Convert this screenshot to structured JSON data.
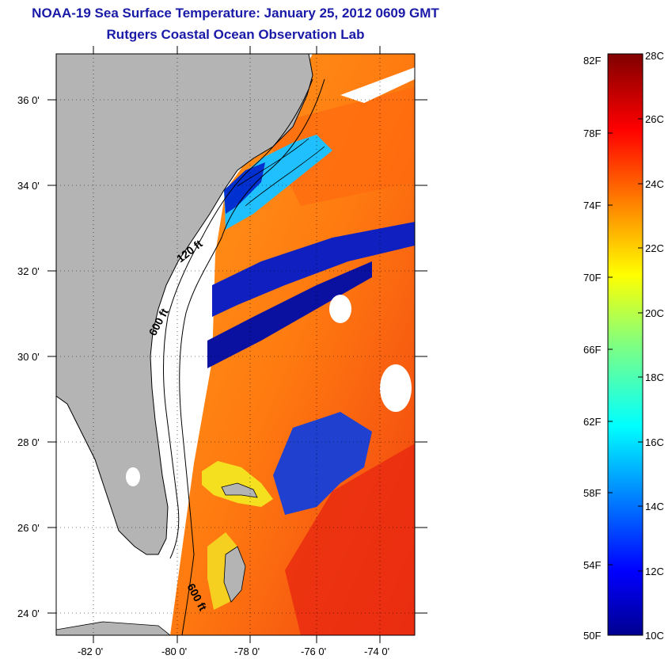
{
  "header": {
    "title": "NOAA-19 Sea Surface Temperature:  January 25, 2012 0609 GMT",
    "subtitle": "Rutgers Coastal Ocean Observation Lab"
  },
  "map": {
    "lat_ticks": [
      "36 0'",
      "34 0'",
      "32 0'",
      "30 0'",
      "28 0'",
      "26 0'",
      "24 0'"
    ],
    "lon_ticks": [
      "-82 0'",
      "-80 0'",
      "-78 0'",
      "-76 0'",
      "-74 0'"
    ],
    "contour_labels": [
      "120 ft",
      "600 ft",
      "600 ft"
    ],
    "land_color": "#b4b4b4",
    "cloud_color": "#ffffff"
  },
  "colorbar": {
    "f_labels": [
      "82F",
      "78F",
      "74F",
      "70F",
      "66F",
      "62F",
      "58F",
      "54F",
      "50F"
    ],
    "c_labels": [
      "28C",
      "26C",
      "24C",
      "22C",
      "20C",
      "18C",
      "16C",
      "14C",
      "12C",
      "10C"
    ],
    "colormap": "jet",
    "range_c": [
      10,
      28
    ]
  }
}
